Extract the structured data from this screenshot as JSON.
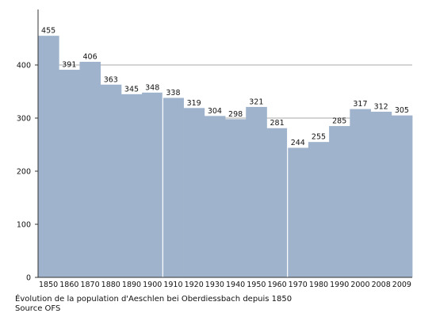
{
  "chart_data": {
    "type": "bar",
    "categories": [
      "1850",
      "1860",
      "1870",
      "1880",
      "1890",
      "1900",
      "1910",
      "1920",
      "1930",
      "1940",
      "1950",
      "1960",
      "1970",
      "1980",
      "1990",
      "2000",
      "2008",
      "2009"
    ],
    "values": [
      455,
      391,
      406,
      363,
      345,
      348,
      338,
      319,
      304,
      298,
      321,
      281,
      244,
      255,
      285,
      317,
      312,
      305
    ],
    "ylim": [
      0,
      500
    ],
    "yticks": [
      0,
      100,
      200,
      300,
      400
    ],
    "grid": true,
    "bar_color": "#9fb4cc",
    "grid_color": "#8c8c8c",
    "separator_color": "#ffffff",
    "separators_after": [
      "1900",
      "1960"
    ],
    "caption": "Évolution de la population d'Aeschlen bei Oberdiessbach depuis 1850",
    "source": "Source OFS"
  }
}
